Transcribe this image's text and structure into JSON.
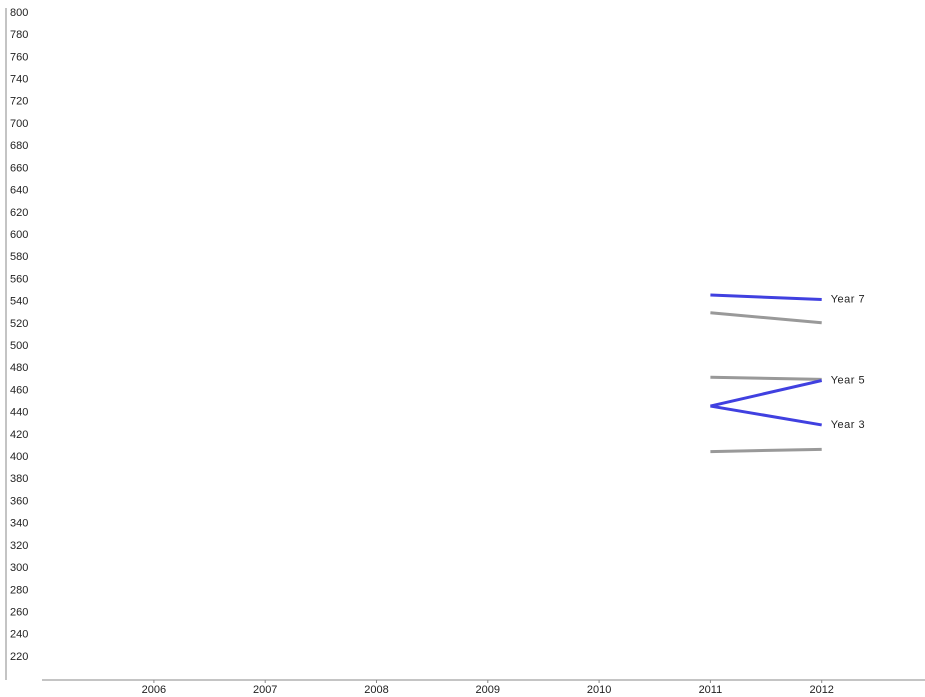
{
  "chart_data": {
    "type": "line",
    "x": [
      2011,
      2012
    ],
    "series": [
      {
        "color": "#999999",
        "values": [
          530,
          521
        ]
      },
      {
        "color": "#999999",
        "values": [
          472,
          470
        ]
      },
      {
        "color": "#999999",
        "values": [
          405,
          407
        ]
      },
      {
        "name": "Year 7",
        "color": "#4040e0",
        "values": [
          546,
          542
        ]
      },
      {
        "name": "Year 5",
        "color": "#4040e0",
        "values": [
          446,
          469
        ]
      },
      {
        "name": "Year 3",
        "color": "#4040e0",
        "values": [
          446,
          429
        ]
      }
    ],
    "xlim": [
      2005,
      2013
    ],
    "xticks": [
      2006,
      2007,
      2008,
      2009,
      2010,
      2011,
      2012
    ],
    "ylim": [
      200,
      800
    ],
    "yticks": [
      220,
      240,
      260,
      280,
      300,
      320,
      340,
      360,
      380,
      400,
      420,
      440,
      460,
      480,
      500,
      520,
      540,
      560,
      580,
      600,
      620,
      640,
      660,
      680,
      700,
      720,
      740,
      760,
      780,
      800
    ],
    "grid": false
  }
}
